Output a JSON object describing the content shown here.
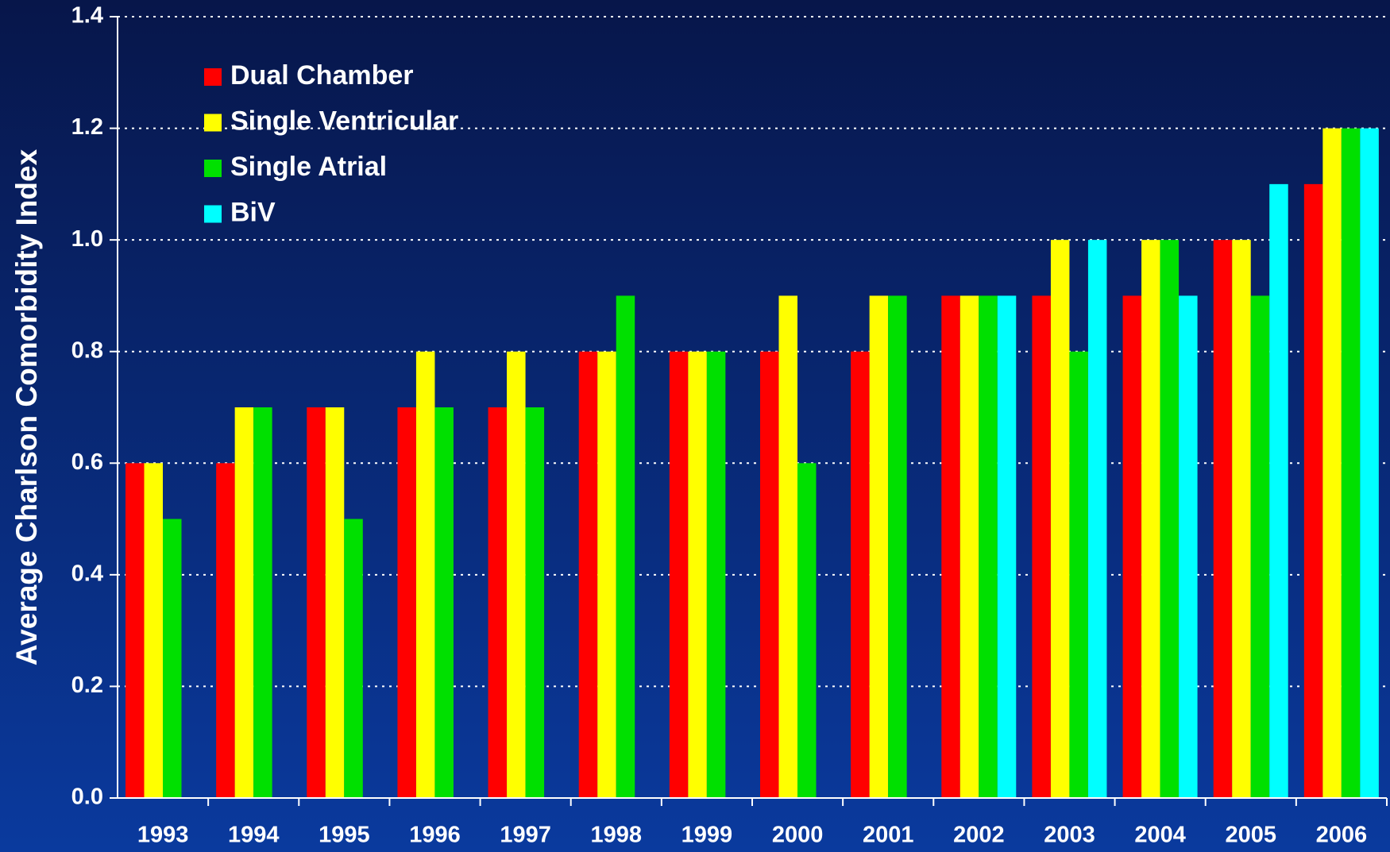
{
  "chart_data": {
    "type": "bar",
    "y_label": "Average Charlson Comorbidity Index",
    "categories": [
      "1993",
      "1994",
      "1995",
      "1996",
      "1997",
      "1998",
      "1999",
      "2000",
      "2001",
      "2002",
      "2003",
      "2004",
      "2005",
      "2006"
    ],
    "series": [
      {
        "name": "Dual Chamber",
        "color": "#ff0000",
        "values": [
          0.6,
          0.6,
          0.7,
          0.7,
          0.7,
          0.8,
          0.8,
          0.8,
          0.8,
          0.9,
          0.9,
          0.9,
          1.0,
          1.1
        ]
      },
      {
        "name": "Single Ventricular",
        "color": "#ffff00",
        "values": [
          0.6,
          0.7,
          0.7,
          0.8,
          0.8,
          0.8,
          0.8,
          0.9,
          0.9,
          0.9,
          1.0,
          1.0,
          1.0,
          1.2
        ]
      },
      {
        "name": "Single Atrial",
        "color": "#00e000",
        "values": [
          0.5,
          0.7,
          0.5,
          0.7,
          0.7,
          0.9,
          0.8,
          0.6,
          0.9,
          0.9,
          0.8,
          1.0,
          0.9,
          1.2
        ]
      },
      {
        "name": "BiV",
        "color": "#00ffff",
        "values": [
          null,
          null,
          null,
          null,
          null,
          null,
          null,
          null,
          null,
          0.9,
          1.0,
          0.9,
          1.1,
          1.2
        ]
      }
    ],
    "ylim": [
      0,
      1.4
    ],
    "yticks": [
      {
        "value": 0,
        "label": "0.0"
      },
      0.2,
      0.4,
      0.6,
      0.8,
      {
        "value": 1.0,
        "label": "1.0"
      },
      1.2,
      1.4
    ],
    "grid": true,
    "legend": "upper left"
  }
}
